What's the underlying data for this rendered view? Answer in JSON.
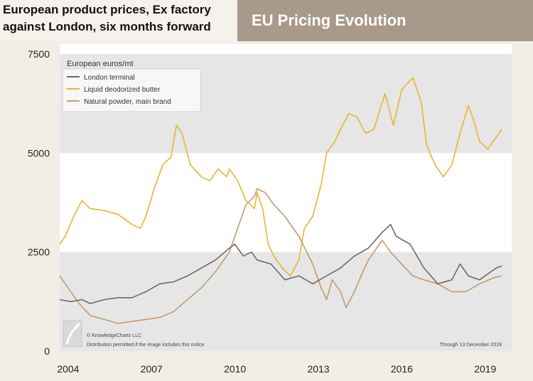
{
  "header": {
    "subtitle_line1": "European product prices, Ex factory",
    "subtitle_line2": "against London, six months forward",
    "title": "EU Pricing Evolution"
  },
  "chart_data": {
    "type": "line",
    "title": "EU Pricing Evolution",
    "ylabel": "European euros/mt",
    "xlabel": "",
    "ylim": [
      0,
      7500
    ],
    "xlim": [
      2003.9,
      2019.9
    ],
    "x_ticks": [
      "2004",
      "2007",
      "2010",
      "2013",
      "2016",
      "2019"
    ],
    "y_ticks": [
      "0",
      "2500",
      "5000",
      "7500"
    ],
    "grid": "alternating horizontal bands",
    "legend_position": "top-left",
    "copyright": "© KnowledgeCharts LLC",
    "distribution_note": "Distribution permitted if the image includes this notice",
    "through_note": "Through 13 December 2019",
    "series": [
      {
        "name": "London terminal",
        "color": "#6b6b6b",
        "points": [
          [
            2003.9,
            1300
          ],
          [
            2004.3,
            1250
          ],
          [
            2004.7,
            1300
          ],
          [
            2005.0,
            1200
          ],
          [
            2005.5,
            1300
          ],
          [
            2006.0,
            1350
          ],
          [
            2006.5,
            1350
          ],
          [
            2007.0,
            1500
          ],
          [
            2007.5,
            1700
          ],
          [
            2008.0,
            1750
          ],
          [
            2008.5,
            1900
          ],
          [
            2009.0,
            2100
          ],
          [
            2009.5,
            2300
          ],
          [
            2010.0,
            2600
          ],
          [
            2010.2,
            2700
          ],
          [
            2010.5,
            2400
          ],
          [
            2010.8,
            2500
          ],
          [
            2011.0,
            2300
          ],
          [
            2011.5,
            2200
          ],
          [
            2012.0,
            1800
          ],
          [
            2012.5,
            1900
          ],
          [
            2013.0,
            1700
          ],
          [
            2013.5,
            1900
          ],
          [
            2014.0,
            2100
          ],
          [
            2014.5,
            2400
          ],
          [
            2015.0,
            2600
          ],
          [
            2015.5,
            3000
          ],
          [
            2015.8,
            3200
          ],
          [
            2016.0,
            2900
          ],
          [
            2016.5,
            2700
          ],
          [
            2017.0,
            2100
          ],
          [
            2017.5,
            1700
          ],
          [
            2018.0,
            1800
          ],
          [
            2018.3,
            2200
          ],
          [
            2018.6,
            1900
          ],
          [
            2019.0,
            1800
          ],
          [
            2019.3,
            1950
          ],
          [
            2019.6,
            2100
          ],
          [
            2019.8,
            2150
          ]
        ]
      },
      {
        "name": "Liquid deodorized butter",
        "color": "#e8b530",
        "points": [
          [
            2003.9,
            2700
          ],
          [
            2004.1,
            2900
          ],
          [
            2004.4,
            3400
          ],
          [
            2004.7,
            3800
          ],
          [
            2005.0,
            3600
          ],
          [
            2005.5,
            3550
          ],
          [
            2006.0,
            3450
          ],
          [
            2006.5,
            3200
          ],
          [
            2006.8,
            3100
          ],
          [
            2007.0,
            3400
          ],
          [
            2007.3,
            4100
          ],
          [
            2007.6,
            4700
          ],
          [
            2007.9,
            4900
          ],
          [
            2008.1,
            5700
          ],
          [
            2008.3,
            5500
          ],
          [
            2008.6,
            4700
          ],
          [
            2009.0,
            4400
          ],
          [
            2009.3,
            4300
          ],
          [
            2009.6,
            4600
          ],
          [
            2009.9,
            4400
          ],
          [
            2010.0,
            4600
          ],
          [
            2010.3,
            4300
          ],
          [
            2010.6,
            3800
          ],
          [
            2010.9,
            3600
          ],
          [
            2011.0,
            4000
          ],
          [
            2011.2,
            3600
          ],
          [
            2011.4,
            2700
          ],
          [
            2011.6,
            2400
          ],
          [
            2011.9,
            2100
          ],
          [
            2012.2,
            1900
          ],
          [
            2012.5,
            2300
          ],
          [
            2012.7,
            3100
          ],
          [
            2013.0,
            3400
          ],
          [
            2013.3,
            4200
          ],
          [
            2013.5,
            5000
          ],
          [
            2013.8,
            5300
          ],
          [
            2014.0,
            5600
          ],
          [
            2014.3,
            6000
          ],
          [
            2014.6,
            5900
          ],
          [
            2014.9,
            5500
          ],
          [
            2015.2,
            5600
          ],
          [
            2015.6,
            6500
          ],
          [
            2015.9,
            5700
          ],
          [
            2016.2,
            6600
          ],
          [
            2016.6,
            6900
          ],
          [
            2016.9,
            6300
          ],
          [
            2017.1,
            5200
          ],
          [
            2017.4,
            4700
          ],
          [
            2017.7,
            4400
          ],
          [
            2018.0,
            4700
          ],
          [
            2018.3,
            5500
          ],
          [
            2018.6,
            6200
          ],
          [
            2018.8,
            5800
          ],
          [
            2019.0,
            5300
          ],
          [
            2019.3,
            5100
          ],
          [
            2019.6,
            5400
          ],
          [
            2019.8,
            5600
          ]
        ]
      },
      {
        "name": "Natural powder, main brand",
        "color": "#c49a6c",
        "points": [
          [
            2003.9,
            1900
          ],
          [
            2004.2,
            1600
          ],
          [
            2004.6,
            1200
          ],
          [
            2005.0,
            900
          ],
          [
            2005.5,
            800
          ],
          [
            2006.0,
            700
          ],
          [
            2006.5,
            750
          ],
          [
            2007.0,
            800
          ],
          [
            2007.5,
            850
          ],
          [
            2008.0,
            1000
          ],
          [
            2008.5,
            1300
          ],
          [
            2009.0,
            1600
          ],
          [
            2009.5,
            2000
          ],
          [
            2010.0,
            2500
          ],
          [
            2010.3,
            3100
          ],
          [
            2010.6,
            3700
          ],
          [
            2010.9,
            3900
          ],
          [
            2011.0,
            4100
          ],
          [
            2011.3,
            4000
          ],
          [
            2011.6,
            3700
          ],
          [
            2012.0,
            3400
          ],
          [
            2012.5,
            2900
          ],
          [
            2013.0,
            2200
          ],
          [
            2013.3,
            1600
          ],
          [
            2013.5,
            1300
          ],
          [
            2013.7,
            1800
          ],
          [
            2014.0,
            1500
          ],
          [
            2014.2,
            1100
          ],
          [
            2014.5,
            1500
          ],
          [
            2014.8,
            2000
          ],
          [
            2015.0,
            2300
          ],
          [
            2015.3,
            2600
          ],
          [
            2015.5,
            2800
          ],
          [
            2015.8,
            2500
          ],
          [
            2016.2,
            2200
          ],
          [
            2016.6,
            1900
          ],
          [
            2017.0,
            1800
          ],
          [
            2017.5,
            1700
          ],
          [
            2018.0,
            1500
          ],
          [
            2018.5,
            1500
          ],
          [
            2019.0,
            1700
          ],
          [
            2019.5,
            1850
          ],
          [
            2019.8,
            1900
          ]
        ]
      }
    ]
  }
}
